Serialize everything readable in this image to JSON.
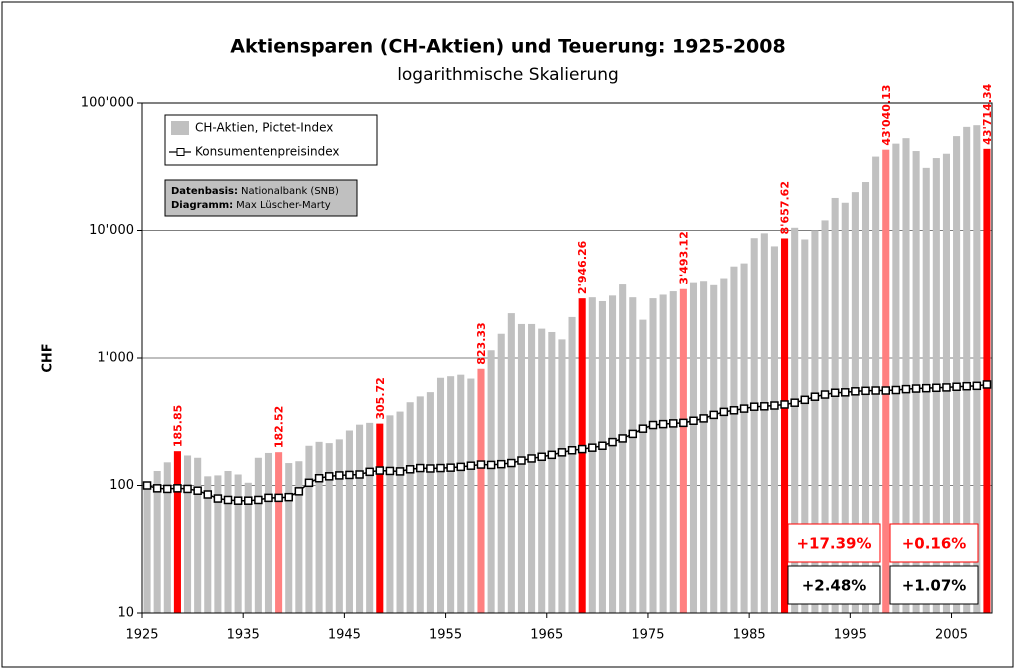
{
  "chart_data": {
    "type": "bar",
    "title": "Aktiensparen (CH-Aktien) und Teuerung: 1925-2008",
    "subtitle": "logarithmische Skalierung",
    "y_label": "CHF",
    "x": [
      1925,
      1926,
      1927,
      1928,
      1929,
      1930,
      1931,
      1932,
      1933,
      1934,
      1935,
      1936,
      1937,
      1938,
      1939,
      1940,
      1941,
      1942,
      1943,
      1944,
      1945,
      1946,
      1947,
      1948,
      1949,
      1950,
      1951,
      1952,
      1953,
      1954,
      1955,
      1956,
      1957,
      1958,
      1959,
      1960,
      1961,
      1962,
      1963,
      1964,
      1965,
      1966,
      1967,
      1968,
      1969,
      1970,
      1971,
      1972,
      1973,
      1974,
      1975,
      1976,
      1977,
      1978,
      1979,
      1980,
      1981,
      1982,
      1983,
      1984,
      1985,
      1986,
      1987,
      1988,
      1989,
      1990,
      1991,
      1992,
      1993,
      1994,
      1995,
      1996,
      1997,
      1998,
      1999,
      2000,
      2001,
      2002,
      2003,
      2004,
      2005,
      2006,
      2007,
      2008
    ],
    "xlim": [
      1925,
      2009
    ],
    "xticks": [
      1925,
      1935,
      1945,
      1955,
      1965,
      1975,
      1985,
      1995,
      2005
    ],
    "ylim": [
      10,
      100000
    ],
    "yticks": [
      10,
      100,
      {
        "value": 1000,
        "label": "1'000"
      },
      {
        "value": 10000,
        "label": "10'000"
      },
      {
        "value": 100000,
        "label": "100'000"
      }
    ],
    "log_y": true,
    "grid": true,
    "series": [
      {
        "name": "CH-Aktien, Pictet-Index",
        "type": "bar",
        "color": "#c0c0c0",
        "label_color": "#ff0000",
        "values": [
          100,
          130,
          152,
          185.85,
          172,
          165,
          118,
          120,
          130,
          122,
          105,
          165,
          180,
          182.52,
          150,
          155,
          205,
          220,
          215,
          230,
          270,
          300,
          310,
          305.72,
          355,
          380,
          450,
          500,
          540,
          700,
          720,
          740,
          690,
          823.33,
          1150,
          1550,
          2250,
          1850,
          1850,
          1700,
          1600,
          1400,
          2100,
          2946.26,
          3000,
          2800,
          3100,
          3800,
          3000,
          2000,
          2950,
          3150,
          3350,
          3493.12,
          3900,
          4000,
          3750,
          4200,
          5200,
          5500,
          8700,
          9500,
          7500,
          8657.62,
          10500,
          8500,
          10000,
          12000,
          18000,
          16500,
          20000,
          24000,
          38000,
          43040.13,
          48000,
          53000,
          42000,
          31000,
          37000,
          40000,
          55000,
          65000,
          67000,
          43714.34
        ],
        "colors": [
          "#c0c0c0",
          "#c0c0c0",
          "#c0c0c0",
          "#ff0000",
          "#c0c0c0",
          "#c0c0c0",
          "#c0c0c0",
          "#c0c0c0",
          "#c0c0c0",
          "#c0c0c0",
          "#c0c0c0",
          "#c0c0c0",
          "#c0c0c0",
          "#ff8080",
          "#c0c0c0",
          "#c0c0c0",
          "#c0c0c0",
          "#c0c0c0",
          "#c0c0c0",
          "#c0c0c0",
          "#c0c0c0",
          "#c0c0c0",
          "#c0c0c0",
          "#ff0000",
          "#c0c0c0",
          "#c0c0c0",
          "#c0c0c0",
          "#c0c0c0",
          "#c0c0c0",
          "#c0c0c0",
          "#c0c0c0",
          "#c0c0c0",
          "#c0c0c0",
          "#ff8080",
          "#c0c0c0",
          "#c0c0c0",
          "#c0c0c0",
          "#c0c0c0",
          "#c0c0c0",
          "#c0c0c0",
          "#c0c0c0",
          "#c0c0c0",
          "#c0c0c0",
          "#ff0000",
          "#c0c0c0",
          "#c0c0c0",
          "#c0c0c0",
          "#c0c0c0",
          "#c0c0c0",
          "#c0c0c0",
          "#c0c0c0",
          "#c0c0c0",
          "#c0c0c0",
          "#ff8080",
          "#c0c0c0",
          "#c0c0c0",
          "#c0c0c0",
          "#c0c0c0",
          "#c0c0c0",
          "#c0c0c0",
          "#c0c0c0",
          "#c0c0c0",
          "#c0c0c0",
          "#ff0000",
          "#c0c0c0",
          "#c0c0c0",
          "#c0c0c0",
          "#c0c0c0",
          "#c0c0c0",
          "#c0c0c0",
          "#c0c0c0",
          "#c0c0c0",
          "#c0c0c0",
          "#ff8080",
          "#c0c0c0",
          "#c0c0c0",
          "#c0c0c0",
          "#c0c0c0",
          "#c0c0c0",
          "#c0c0c0",
          "#c0c0c0",
          "#c0c0c0",
          "#c0c0c0",
          "#ff0000"
        ],
        "value_labels": [
          null,
          null,
          null,
          null,
          null,
          null,
          null,
          null,
          null,
          null,
          null,
          null,
          null,
          null,
          null,
          null,
          null,
          null,
          null,
          null,
          null,
          null,
          null,
          null,
          null,
          null,
          null,
          null,
          null,
          null,
          null,
          null,
          null,
          null,
          null,
          null,
          null,
          null,
          null,
          null,
          null,
          null,
          null,
          "2'946.26",
          null,
          null,
          null,
          null,
          null,
          null,
          null,
          null,
          null,
          "3'493.12",
          null,
          null,
          null,
          null,
          null,
          null,
          null,
          null,
          null,
          "8'657.62",
          null,
          null,
          null,
          null,
          null,
          null,
          null,
          null,
          null,
          "43'040.13",
          null,
          null,
          null,
          null,
          null,
          null,
          null,
          null,
          null,
          "43'714.34"
        ]
      },
      {
        "name": "Konsumentenpreisindex",
        "type": "line",
        "color": "#000000",
        "values": [
          100,
          95,
          94,
          95,
          94,
          91,
          85,
          79,
          77,
          76,
          76,
          77,
          80,
          80,
          81,
          90,
          105,
          114,
          118,
          120,
          121,
          122,
          128,
          131,
          130,
          129,
          134,
          137,
          136,
          137,
          138,
          140,
          143,
          146,
          145,
          147,
          150,
          157,
          163,
          168,
          174,
          182,
          189,
          193,
          198,
          205,
          219,
          234,
          254,
          279,
          298,
          303,
          307,
          310,
          322,
          336,
          358,
          378,
          389,
          401,
          415,
          418,
          424,
          432,
          446,
          470,
          497,
          517,
          534,
          538,
          548,
          553,
          556,
          556,
          561,
          570,
          576,
          580,
          584,
          588,
          595,
          601,
          605,
          620
        ]
      }
    ],
    "note": [
      {
        "key": "Datenbasis:",
        "text": "Nationalbank (SNB)"
      },
      {
        "key": "Diagramm:",
        "text": "Max Lüscher-Marty"
      }
    ],
    "annotations": [
      {
        "text": "+17.39%",
        "color": "#ff0000"
      },
      {
        "text": "+0.16%",
        "color": "#ff0000"
      },
      {
        "text": "+2.48%",
        "color": "#000000"
      },
      {
        "text": "+1.07%",
        "color": "#000000"
      }
    ]
  }
}
